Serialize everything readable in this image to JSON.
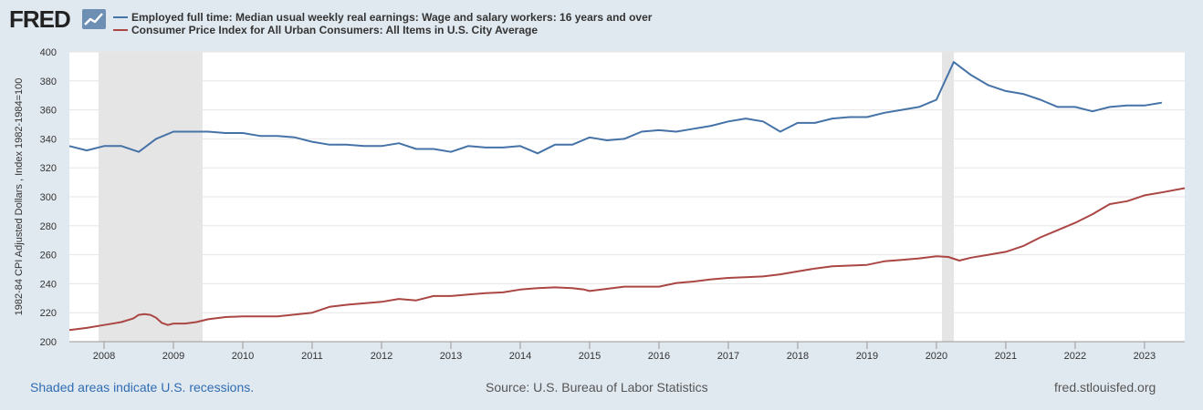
{
  "brand": {
    "logo_text": "FRED",
    "logo_icon": "line-chart-icon",
    "accent": "#2f6cb3"
  },
  "footer": {
    "recession_note": "Shaded areas indicate U.S. recessions.",
    "source": "Source: U.S. Bureau of Labor Statistics",
    "site": "fred.stlouisfed.org"
  },
  "chart_data": {
    "type": "line",
    "ylabel": "1982-84 CPI Adjusted Dollars , Index 1982-1984=100",
    "xlabel": "",
    "ylim": [
      200,
      400
    ],
    "yticks": [
      200,
      220,
      240,
      260,
      280,
      300,
      320,
      340,
      360,
      380,
      400
    ],
    "xlim": [
      2007.5,
      2023.58
    ],
    "xticks": [
      2008,
      2009,
      2010,
      2011,
      2012,
      2013,
      2014,
      2015,
      2016,
      2017,
      2018,
      2019,
      2020,
      2021,
      2022,
      2023
    ],
    "grid": true,
    "legend_position": "top-left",
    "recessions": [
      [
        2007.92,
        2009.42
      ],
      [
        2020.08,
        2020.25
      ]
    ],
    "recession_color": "#e5e5e5",
    "series": [
      {
        "name": "Employed full time: Median usual weekly real earnings: Wage and salary workers: 16 years and over",
        "color": "#4572a7",
        "x": [
          2007.5,
          2007.75,
          2008.0,
          2008.25,
          2008.5,
          2008.75,
          2009.0,
          2009.25,
          2009.5,
          2009.75,
          2010.0,
          2010.25,
          2010.5,
          2010.75,
          2011.0,
          2011.25,
          2011.5,
          2011.75,
          2012.0,
          2012.25,
          2012.5,
          2012.75,
          2013.0,
          2013.25,
          2013.5,
          2013.75,
          2014.0,
          2014.25,
          2014.5,
          2014.75,
          2015.0,
          2015.25,
          2015.5,
          2015.75,
          2016.0,
          2016.25,
          2016.5,
          2016.75,
          2017.0,
          2017.25,
          2017.5,
          2017.75,
          2018.0,
          2018.25,
          2018.5,
          2018.75,
          2019.0,
          2019.25,
          2019.5,
          2019.75,
          2020.0,
          2020.25,
          2020.5,
          2020.75,
          2021.0,
          2021.25,
          2021.5,
          2021.75,
          2022.0,
          2022.25,
          2022.5,
          2022.75,
          2023.0,
          2023.25
        ],
        "values": [
          335,
          332,
          335,
          335,
          331,
          340,
          345,
          345,
          345,
          344,
          344,
          342,
          342,
          341,
          338,
          336,
          336,
          335,
          335,
          337,
          333,
          333,
          331,
          335,
          334,
          334,
          335,
          330,
          336,
          336,
          341,
          339,
          340,
          345,
          346,
          345,
          347,
          349,
          352,
          354,
          352,
          345,
          351,
          351,
          354,
          355,
          355,
          358,
          360,
          362,
          367,
          393,
          384,
          377,
          373,
          371,
          367,
          362,
          362,
          359,
          362,
          363,
          363,
          365
        ]
      },
      {
        "name": "Consumer Price Index for All Urban Consumers: All Items in U.S. City Average",
        "color": "#aa4643",
        "x": [
          2007.5,
          2007.75,
          2008.0,
          2008.25,
          2008.42,
          2008.5,
          2008.58,
          2008.67,
          2008.75,
          2008.83,
          2008.92,
          2009.0,
          2009.17,
          2009.33,
          2009.5,
          2009.75,
          2010.0,
          2010.5,
          2011.0,
          2011.25,
          2011.5,
          2011.75,
          2012.0,
          2012.25,
          2012.5,
          2012.75,
          2013.0,
          2013.25,
          2013.5,
          2013.75,
          2014.0,
          2014.25,
          2014.5,
          2014.75,
          2014.92,
          2015.0,
          2015.25,
          2015.5,
          2015.75,
          2016.0,
          2016.25,
          2016.5,
          2016.75,
          2017.0,
          2017.25,
          2017.5,
          2017.75,
          2018.0,
          2018.25,
          2018.5,
          2018.75,
          2019.0,
          2019.25,
          2019.5,
          2019.75,
          2020.0,
          2020.17,
          2020.33,
          2020.5,
          2020.75,
          2021.0,
          2021.25,
          2021.5,
          2021.75,
          2022.0,
          2022.25,
          2022.5,
          2022.75,
          2023.0,
          2023.25,
          2023.58
        ],
        "values": [
          208,
          209.5,
          211.5,
          213.5,
          216,
          218.5,
          219,
          218.5,
          216.5,
          213,
          211.5,
          212.5,
          212.5,
          213.5,
          215.5,
          217,
          217.5,
          217.5,
          220,
          224,
          225.5,
          226.5,
          227.5,
          229.5,
          228.5,
          231.5,
          231.5,
          232.5,
          233.5,
          234,
          236,
          237,
          237.5,
          237,
          236,
          235,
          236.5,
          238,
          238,
          238,
          240.5,
          241.5,
          243,
          244,
          244.5,
          245,
          246.5,
          248.5,
          250.5,
          252,
          252.5,
          253,
          255.5,
          256.5,
          257.5,
          259,
          258.5,
          256,
          258,
          260,
          262,
          266,
          272,
          277,
          282,
          288,
          295,
          297,
          301,
          303,
          306
        ]
      }
    ]
  }
}
